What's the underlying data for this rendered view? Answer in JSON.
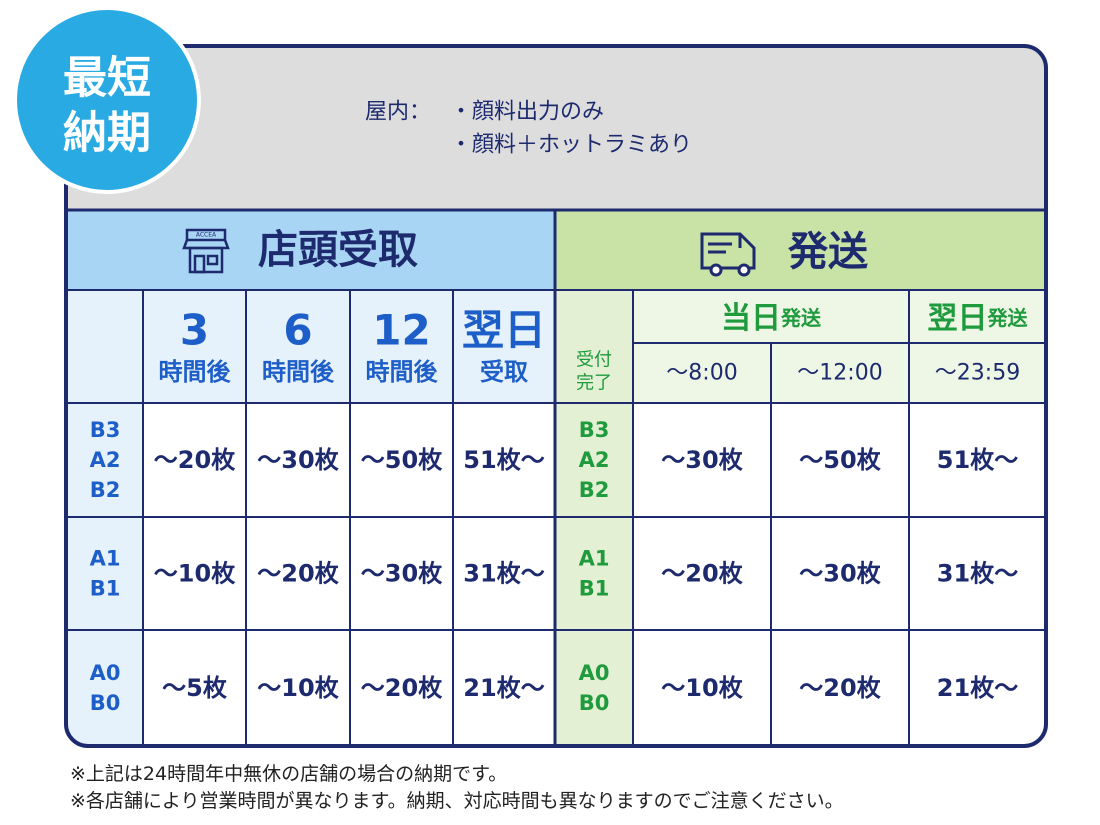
{
  "badge": {
    "lines": [
      "最短",
      "納期"
    ]
  },
  "header": {
    "label": "屋内：",
    "items": [
      "・顔料出力のみ",
      "・顔料＋ホットラミあり"
    ]
  },
  "store": {
    "title": "店頭受取",
    "icon_label": "ACCEA",
    "columns": [
      {
        "top": "3",
        "bottom": "時間後"
      },
      {
        "top": "6",
        "bottom": "時間後"
      },
      {
        "top": "12",
        "bottom": "時間後"
      },
      {
        "top": "翌日",
        "bottom": "受取"
      }
    ],
    "rows": [
      {
        "sizes": [
          "B3",
          "A2",
          "B2"
        ],
        "values": [
          "～20枚",
          "～30枚",
          "～50枚",
          "51枚～"
        ]
      },
      {
        "sizes": [
          "A1",
          "B1"
        ],
        "values": [
          "～10枚",
          "～20枚",
          "～30枚",
          "31枚～"
        ]
      },
      {
        "sizes": [
          "A0",
          "B0"
        ],
        "values": [
          "～5枚",
          "～10枚",
          "～20枚",
          "21枚～"
        ]
      }
    ]
  },
  "shipping": {
    "title": "発送",
    "groups": [
      {
        "name": "当日",
        "suffix": "発送"
      },
      {
        "name": "翌日",
        "suffix": "発送"
      }
    ],
    "cutoff_label": [
      "受付",
      "完了"
    ],
    "times": [
      "～8:00",
      "～12:00",
      "～23:59"
    ],
    "rows": [
      {
        "sizes": [
          "B3",
          "A2",
          "B2"
        ],
        "values": [
          "～30枚",
          "～50枚",
          "51枚～"
        ]
      },
      {
        "sizes": [
          "A1",
          "B1"
        ],
        "values": [
          "～20枚",
          "～30枚",
          "31枚～"
        ]
      },
      {
        "sizes": [
          "A0",
          "B0"
        ],
        "values": [
          "～10枚",
          "～20枚",
          "21枚～"
        ]
      }
    ]
  },
  "notes": [
    "※上記は24時間年中無休の店舗の場合の納期です。",
    "※各店舗により営業時間が異なります。納期、対応時間も異なりますのでご注意ください。"
  ]
}
